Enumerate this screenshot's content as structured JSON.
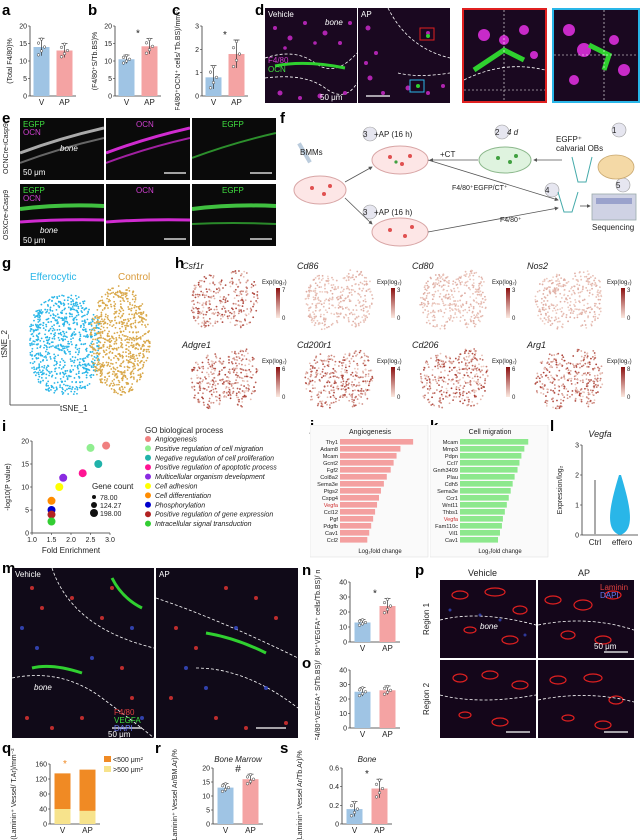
{
  "panels": {
    "a": {
      "label": "a",
      "ylabel": "(Total F4/80)%",
      "categories": [
        "V",
        "AP"
      ],
      "values": [
        14,
        13
      ],
      "errors": [
        2.5,
        2
      ],
      "ylim": [
        0,
        20
      ],
      "ticks": [
        "0",
        "5",
        "10",
        "15",
        "20"
      ]
    },
    "b": {
      "label": "b",
      "ylabel": "(F4/80⁺S/Tb.BS)%",
      "categories": [
        "V",
        "AP"
      ],
      "values": [
        10.5,
        14.2
      ],
      "errors": [
        1.2,
        2.2
      ],
      "ylim": [
        0,
        20
      ],
      "ticks": [
        "0",
        "5",
        "10",
        "15",
        "20"
      ],
      "sig": "*"
    },
    "c": {
      "label": "c",
      "ylabel": "(F4/80⁺OCN⁺ cells/ Tb.BS)/mm⁻¹",
      "categories": [
        "V",
        "AP"
      ],
      "values": [
        0.8,
        1.8
      ],
      "errors": [
        0.5,
        0.6
      ],
      "ylim": [
        0,
        3
      ],
      "ticks": [
        "0",
        "1",
        "2",
        "3"
      ],
      "sig": "*"
    },
    "d": {
      "label": "d",
      "vehicle": "Vehicle",
      "ap": "AP",
      "bone": "bone",
      "stain1": "F4/80",
      "stain2": "OCN",
      "scale": "50 μm"
    },
    "e": {
      "label": "e",
      "row1": "OCNCre-iCasp9",
      "row2": "OSXCre-iCasp9",
      "egfp": "EGFP",
      "ocn": "OCN",
      "bone": "bone",
      "scale": "50 μm"
    },
    "f": {
      "label": "f",
      "step1": "EGFP⁺ calvarial OBs",
      "step2": "4 d",
      "step3": "+AP (16 h)",
      "bmms": "BMMs",
      "ct": "+CT",
      "sort1": "F4/80⁺EGFP/CT⁺",
      "sort2": "F4/80⁺",
      "seq": "Sequencing",
      "n1": "1",
      "n2": "2",
      "n3": "3",
      "n4": "4",
      "n5": "5"
    },
    "g": {
      "label": "g",
      "efferocytic": "Efferocytic",
      "control": "Control",
      "xlabel": "tSNE_1",
      "ylabel": "tSNE_2"
    },
    "h": {
      "label": "h",
      "genes": [
        {
          "name": "Csf1r",
          "max": "7",
          "min": "0"
        },
        {
          "name": "Cd86",
          "max": "3",
          "min": "0"
        },
        {
          "name": "Cd80",
          "max": "3",
          "min": "0"
        },
        {
          "name": "Nos2",
          "max": "3",
          "min": "0"
        },
        {
          "name": "Adgre1",
          "max": "6",
          "min": "0"
        },
        {
          "name": "Cd200r1",
          "max": "4",
          "min": "0"
        },
        {
          "name": "Cd206",
          "max": "6",
          "min": "0"
        },
        {
          "name": "Arg1",
          "max": "8",
          "min": "0"
        }
      ],
      "exp": "Exp(log₂)"
    },
    "i": {
      "label": "i",
      "title": "GO biological process",
      "xlabel": "Fold Enrichment",
      "ylabel": "-log10(P value)",
      "xticks": [
        "1.0",
        "1.5",
        "2.0",
        "2.5",
        "3.0"
      ],
      "yticks": [
        "0",
        "5",
        "10",
        "15",
        "20"
      ],
      "terms": [
        {
          "name": "Angiogenesis",
          "color": "#f08080"
        },
        {
          "name": "Positive regulation of cell migration",
          "color": "#90ee90"
        },
        {
          "name": "Negative regulation of cell proliferation",
          "color": "#20b2aa"
        },
        {
          "name": "Positive regulation of apoptotic process",
          "color": "#ff1493"
        },
        {
          "name": "Multicellular organism development",
          "color": "#8a2be2"
        },
        {
          "name": "Cell adhesion",
          "color": "#ffff00"
        },
        {
          "name": "Cell differentiation",
          "color": "#ff8c00"
        },
        {
          "name": "Phosphorylation",
          "color": "#0000cd"
        },
        {
          "name": "Positive regulation of gene expression",
          "color": "#b22222"
        },
        {
          "name": "Intracellular signal transduction",
          "color": "#32cd32"
        }
      ],
      "legend_title": "Gene count",
      "sizes": [
        "78.00",
        "124.27",
        "198.00"
      ]
    },
    "j": {
      "label": "j",
      "title": "Angiogenesis",
      "xlabel": "Log₂fold change",
      "genes": [
        "Thy1",
        "Adam8",
        "Mcam",
        "Gcnt2",
        "Fgf2",
        "Col8a2",
        "Sema3e",
        "Ptgs2",
        "Cspg4",
        "Vegfa",
        "Ccl12",
        "Pgf",
        "Pdgfb",
        "Cav1",
        "Ccl2"
      ],
      "values": [
        7.5,
        6.2,
        5.8,
        5.5,
        5.2,
        4.8,
        4.5,
        4.2,
        4.0,
        3.8,
        3.6,
        3.4,
        3.2,
        3.0,
        2.8
      ]
    },
    "k": {
      "label": "k",
      "title": "Cell migration",
      "xlabel": "Log₂fold change",
      "genes": [
        "Mcam",
        "Mmp3",
        "Pdpn",
        "Ccl7",
        "Gnrh3409",
        "Plau",
        "Cdh5",
        "Sema3e",
        "Ccr1",
        "Wnt11",
        "Thbs1",
        "Vegfa",
        "Fam110c",
        "Vil1",
        "Cav1"
      ],
      "values": [
        7.0,
        6.6,
        6.3,
        6.1,
        5.9,
        5.6,
        5.4,
        5.2,
        5.0,
        4.8,
        4.6,
        4.4,
        4.3,
        4.1,
        3.9
      ]
    },
    "l": {
      "label": "l",
      "gene": "Vegfa",
      "ylabel": "Expression/log₂",
      "categories": [
        "Ctrl",
        "effero"
      ],
      "yticks": [
        "0",
        "1",
        "2",
        "3"
      ]
    },
    "m": {
      "label": "m",
      "vehicle": "Vehicle",
      "ap": "AP",
      "bone": "bone",
      "stain1": "F4/80",
      "stain2": "VEGFA",
      "stain3": "DAPI",
      "scale": "50 μm"
    },
    "n": {
      "label": "n",
      "ylabel": "(F4/80⁺VEGFA⁺ cells/Tb.BS)/ mm⁻¹",
      "categories": [
        "V",
        "AP"
      ],
      "values": [
        13,
        24
      ],
      "errors": [
        2,
        5
      ],
      "ylim": [
        0,
        40
      ],
      "ticks": [
        "0",
        "10",
        "20",
        "30",
        "40"
      ],
      "sig": "*"
    },
    "o": {
      "label": "o",
      "ylabel": "(F4/80⁺VEGFA⁺ S/Tb.BS)/%",
      "categories": [
        "V",
        "AP"
      ],
      "values": [
        25,
        26
      ],
      "errors": [
        3,
        3
      ],
      "ylim": [
        0,
        40
      ],
      "ticks": [
        "0",
        "10",
        "20",
        "30",
        "40"
      ]
    },
    "p": {
      "label": "p",
      "vehicle": "Vehicle",
      "ap": "AP",
      "region1": "Region 1",
      "region2": "Region 2",
      "stain1": "Laminin",
      "stain2": "DAPI",
      "bone": "bone",
      "scale": "50 μm"
    },
    "q": {
      "label": "q",
      "ylabel": "(Laminin⁺ Vessel/ T.Ar)/mm⁻²",
      "categories": [
        "V",
        "AP"
      ],
      "small": [
        40,
        35
      ],
      "large": [
        95,
        110
      ],
      "ylim": [
        0,
        160
      ],
      "ticks": [
        "0",
        "40",
        "80",
        "120",
        "160"
      ],
      "legend_small": "<500 μm²",
      "legend_large": ">500 μm²",
      "sig": "*"
    },
    "r": {
      "label": "r",
      "title": "Bone Marrow",
      "ylabel": "(Laminin⁺ Vessel Ar/BM.Ar)/%",
      "categories": [
        "V",
        "AP"
      ],
      "values": [
        13,
        16
      ],
      "errors": [
        1.5,
        1.8
      ],
      "ylim": [
        0,
        20
      ],
      "ticks": [
        "0",
        "5",
        "10",
        "15",
        "20"
      ],
      "sig": "#"
    },
    "s": {
      "label": "s",
      "title": "Bone",
      "ylabel": "(Laminin⁺ Vessel Ar/Tb.Ar)/%",
      "categories": [
        "V",
        "AP"
      ],
      "values": [
        0.16,
        0.38
      ],
      "errors": [
        0.08,
        0.1
      ],
      "ylim": [
        0,
        0.6
      ],
      "ticks": [
        "0",
        "0.2",
        "0.4",
        "0.6"
      ],
      "sig": "*"
    }
  },
  "colors": {
    "v": "#9fc4e4",
    "ap": "#f4a3a3",
    "magenta": "#d02bd0",
    "green": "#33e033",
    "cyan": "#29b6e8",
    "gold": "#e0a040",
    "salmon": "#f4a0a0",
    "lightgreen": "#8de88d",
    "orange": "#f08a24",
    "yellow": "#f7e38c"
  }
}
